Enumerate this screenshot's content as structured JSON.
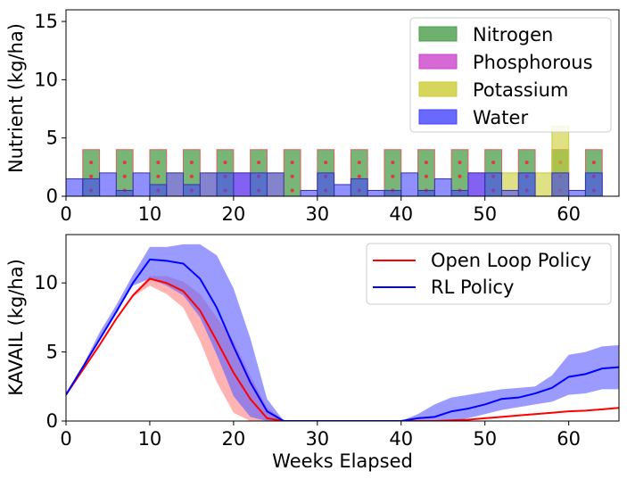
{
  "chart_data": [
    {
      "type": "bar",
      "title": "",
      "xlabel": "",
      "ylabel": "Nutrient (kg/ha)",
      "xlim": [
        0,
        66
      ],
      "ylim": [
        0,
        16
      ],
      "xticks": [
        "0",
        "10",
        "20",
        "30",
        "40",
        "50",
        "60"
      ],
      "xtick_values": [
        0,
        10,
        20,
        30,
        40,
        50,
        60
      ],
      "yticks": [
        "0",
        "5",
        "10",
        "15"
      ],
      "ytick_values": [
        0,
        5,
        10,
        15
      ],
      "legend_position": "top-right",
      "bar_width_weeks": 2,
      "series": [
        {
          "name": "Nitrogen",
          "color": "#4a9e4a",
          "edge": "#e06060",
          "marker_color": "#e8343a",
          "points": [
            [
              3,
              4
            ],
            [
              7,
              4
            ],
            [
              11,
              4
            ],
            [
              15,
              4
            ],
            [
              19,
              4
            ],
            [
              23,
              4
            ],
            [
              27,
              4
            ],
            [
              31,
              4
            ],
            [
              35,
              4
            ],
            [
              39,
              4
            ],
            [
              43,
              4
            ],
            [
              47,
              4
            ],
            [
              51,
              4
            ],
            [
              55,
              4
            ],
            [
              59,
              4
            ],
            [
              63,
              4
            ]
          ]
        },
        {
          "name": "Phosphorous",
          "color": "#cc44cc",
          "edge": "#cc44cc",
          "points": [
            [
              21,
              2
            ],
            [
              49,
              2
            ]
          ]
        },
        {
          "name": "Potassium",
          "color": "#cccc33",
          "edge": "#cccc33",
          "points": [
            [
              13,
              2
            ],
            [
              17,
              2
            ],
            [
              25,
              2
            ],
            [
              53,
              2
            ],
            [
              57,
              2
            ],
            [
              59,
              6
            ]
          ]
        },
        {
          "name": "Water",
          "color": "#4444ff",
          "edge": "#3333aa",
          "points": [
            [
              1,
              1.5
            ],
            [
              3,
              1.5
            ],
            [
              5,
              2
            ],
            [
              7,
              0.5
            ],
            [
              9,
              2
            ],
            [
              11,
              1
            ],
            [
              13,
              2
            ],
            [
              15,
              1
            ],
            [
              17,
              2
            ],
            [
              19,
              2
            ],
            [
              21,
              2
            ],
            [
              23,
              2
            ],
            [
              25,
              2
            ],
            [
              27,
              0
            ],
            [
              29,
              0.5
            ],
            [
              31,
              2
            ],
            [
              33,
              1
            ],
            [
              35,
              1.5
            ],
            [
              37,
              0.5
            ],
            [
              39,
              0.5
            ],
            [
              41,
              2
            ],
            [
              43,
              0.5
            ],
            [
              45,
              1.5
            ],
            [
              47,
              0.5
            ],
            [
              49,
              2
            ],
            [
              51,
              2
            ],
            [
              53,
              0.5
            ],
            [
              55,
              2
            ],
            [
              57,
              0
            ],
            [
              59,
              2
            ],
            [
              61,
              0.5
            ],
            [
              63,
              2
            ]
          ]
        }
      ]
    },
    {
      "type": "line",
      "title": "",
      "xlabel": "Weeks Elapsed",
      "ylabel": "KAVAIL (kg/ha)",
      "xlim": [
        0,
        66
      ],
      "ylim": [
        0,
        13.5
      ],
      "xticks": [
        "0",
        "10",
        "20",
        "30",
        "40",
        "50",
        "60"
      ],
      "xtick_values": [
        0,
        10,
        20,
        30,
        40,
        50,
        60
      ],
      "yticks": [
        "0",
        "5",
        "10"
      ],
      "ytick_values": [
        0,
        5,
        10
      ],
      "legend_position": "top-right",
      "series": [
        {
          "name": "Open Loop Policy",
          "color": "#ff0000",
          "band_color": "#ff8a8a",
          "x": [
            0,
            2,
            4,
            6,
            8,
            10,
            12,
            14,
            16,
            18,
            20,
            22,
            24,
            26,
            28,
            30,
            40,
            42,
            44,
            46,
            48,
            50,
            52,
            54,
            56,
            58,
            60,
            62,
            64,
            66
          ],
          "y": [
            1.9,
            3.7,
            5.5,
            7.4,
            9.1,
            10.3,
            10.0,
            9.4,
            8.0,
            5.8,
            3.5,
            1.6,
            0.2,
            0,
            0,
            0,
            0,
            0,
            0,
            0.05,
            0.1,
            0.2,
            0.3,
            0.4,
            0.5,
            0.6,
            0.7,
            0.75,
            0.85,
            0.95
          ],
          "lower": [
            1.9,
            3.7,
            5.5,
            7.4,
            9.0,
            9.8,
            9.2,
            8.2,
            5.8,
            2.8,
            0.6,
            0,
            0,
            0,
            0,
            0,
            0,
            0,
            0,
            0,
            0.1,
            0.2,
            0.3,
            0.4,
            0.5,
            0.6,
            0.7,
            0.75,
            0.85,
            0.95
          ],
          "upper": [
            1.9,
            3.7,
            5.5,
            7.4,
            9.2,
            10.5,
            10.5,
            10.1,
            9.2,
            7.5,
            5.8,
            3.3,
            1.0,
            0,
            0,
            0,
            0,
            0,
            0,
            0.05,
            0.1,
            0.2,
            0.3,
            0.4,
            0.5,
            0.6,
            0.7,
            0.75,
            0.85,
            0.95
          ]
        },
        {
          "name": "RL Policy",
          "color": "#0000ff",
          "band_color": "#6666ff",
          "x": [
            0,
            2,
            4,
            6,
            8,
            10,
            12,
            14,
            16,
            18,
            20,
            22,
            24,
            26,
            28,
            30,
            40,
            42,
            44,
            46,
            48,
            50,
            52,
            54,
            56,
            58,
            60,
            62,
            64,
            66
          ],
          "y": [
            1.9,
            3.9,
            5.9,
            7.9,
            10.0,
            11.7,
            11.6,
            11.4,
            10.3,
            8.2,
            5.4,
            2.8,
            0.7,
            0,
            0,
            0,
            0,
            0.2,
            0.3,
            0.7,
            0.9,
            1.2,
            1.6,
            1.7,
            2.0,
            2.4,
            3.2,
            3.4,
            3.8,
            3.9
          ],
          "lower": [
            1.9,
            3.9,
            5.9,
            7.9,
            9.8,
            10.3,
            9.8,
            9.1,
            7.5,
            4.8,
            1.8,
            0.3,
            0,
            0,
            0,
            0,
            0,
            0,
            0,
            0,
            0.2,
            0.5,
            0.8,
            1.0,
            1.2,
            1.4,
            1.9,
            2.0,
            2.3,
            2.3
          ],
          "upper": [
            1.9,
            4.0,
            6.4,
            8.4,
            10.6,
            12.6,
            12.6,
            12.8,
            12.8,
            12.0,
            9.6,
            6.0,
            1.6,
            0,
            0,
            0,
            0,
            0.5,
            1.2,
            1.7,
            1.9,
            2.1,
            2.3,
            2.4,
            2.5,
            3.3,
            4.8,
            5.0,
            5.4,
            5.5
          ]
        }
      ]
    }
  ]
}
